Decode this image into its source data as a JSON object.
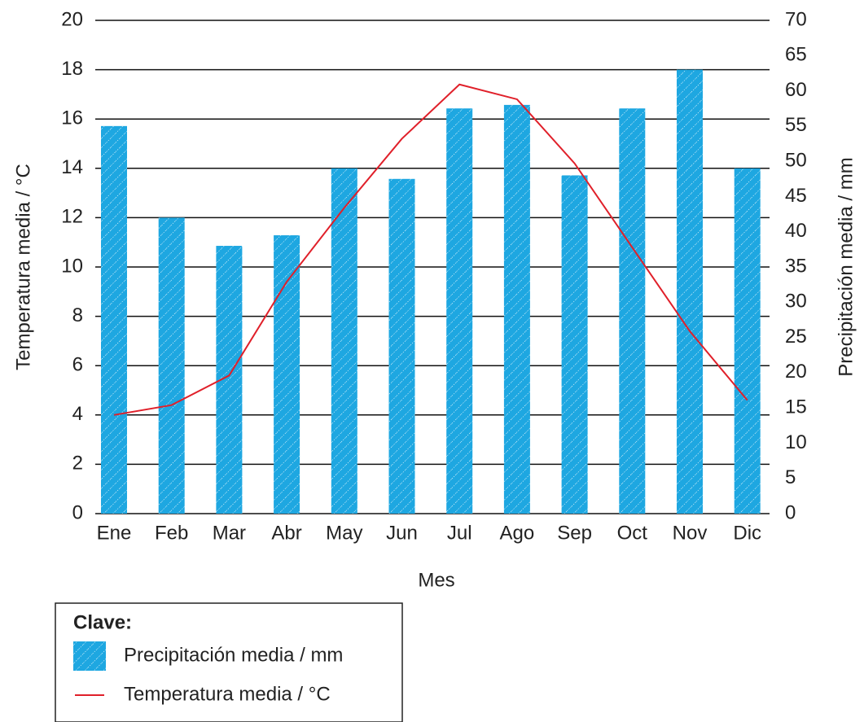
{
  "chart_data": {
    "type": "bar-line",
    "categories": [
      "Ene",
      "Feb",
      "Mar",
      "Abr",
      "May",
      "Jun",
      "Jul",
      "Ago",
      "Sep",
      "Oct",
      "Nov",
      "Dic"
    ],
    "series": [
      {
        "name": "Precipitación media / mm",
        "type": "bar",
        "axis": "y2",
        "color": "#1ea7e1",
        "values": [
          55,
          42,
          38,
          39.5,
          49,
          47.5,
          57.5,
          58,
          48,
          57.5,
          63,
          49
        ]
      },
      {
        "name": "Temperatura media / °C",
        "type": "line",
        "axis": "y",
        "color": "#e0202a",
        "values": [
          4.0,
          4.4,
          5.6,
          9.4,
          12.4,
          15.2,
          17.4,
          16.8,
          14.2,
          10.8,
          7.4,
          4.6
        ]
      }
    ],
    "x_label": "Mes",
    "y_label": "Temperatura media / °C",
    "y2_label": "Precipitación media / mm",
    "ylim": [
      0,
      20
    ],
    "yticks": [
      0,
      2,
      4,
      6,
      8,
      10,
      12,
      14,
      16,
      18,
      20
    ],
    "y2lim": [
      0,
      70
    ],
    "y2ticks": [
      0,
      5,
      10,
      15,
      20,
      25,
      30,
      35,
      40,
      45,
      50,
      55,
      60,
      65,
      70
    ],
    "grid": true,
    "legend_title": "Clave:"
  }
}
